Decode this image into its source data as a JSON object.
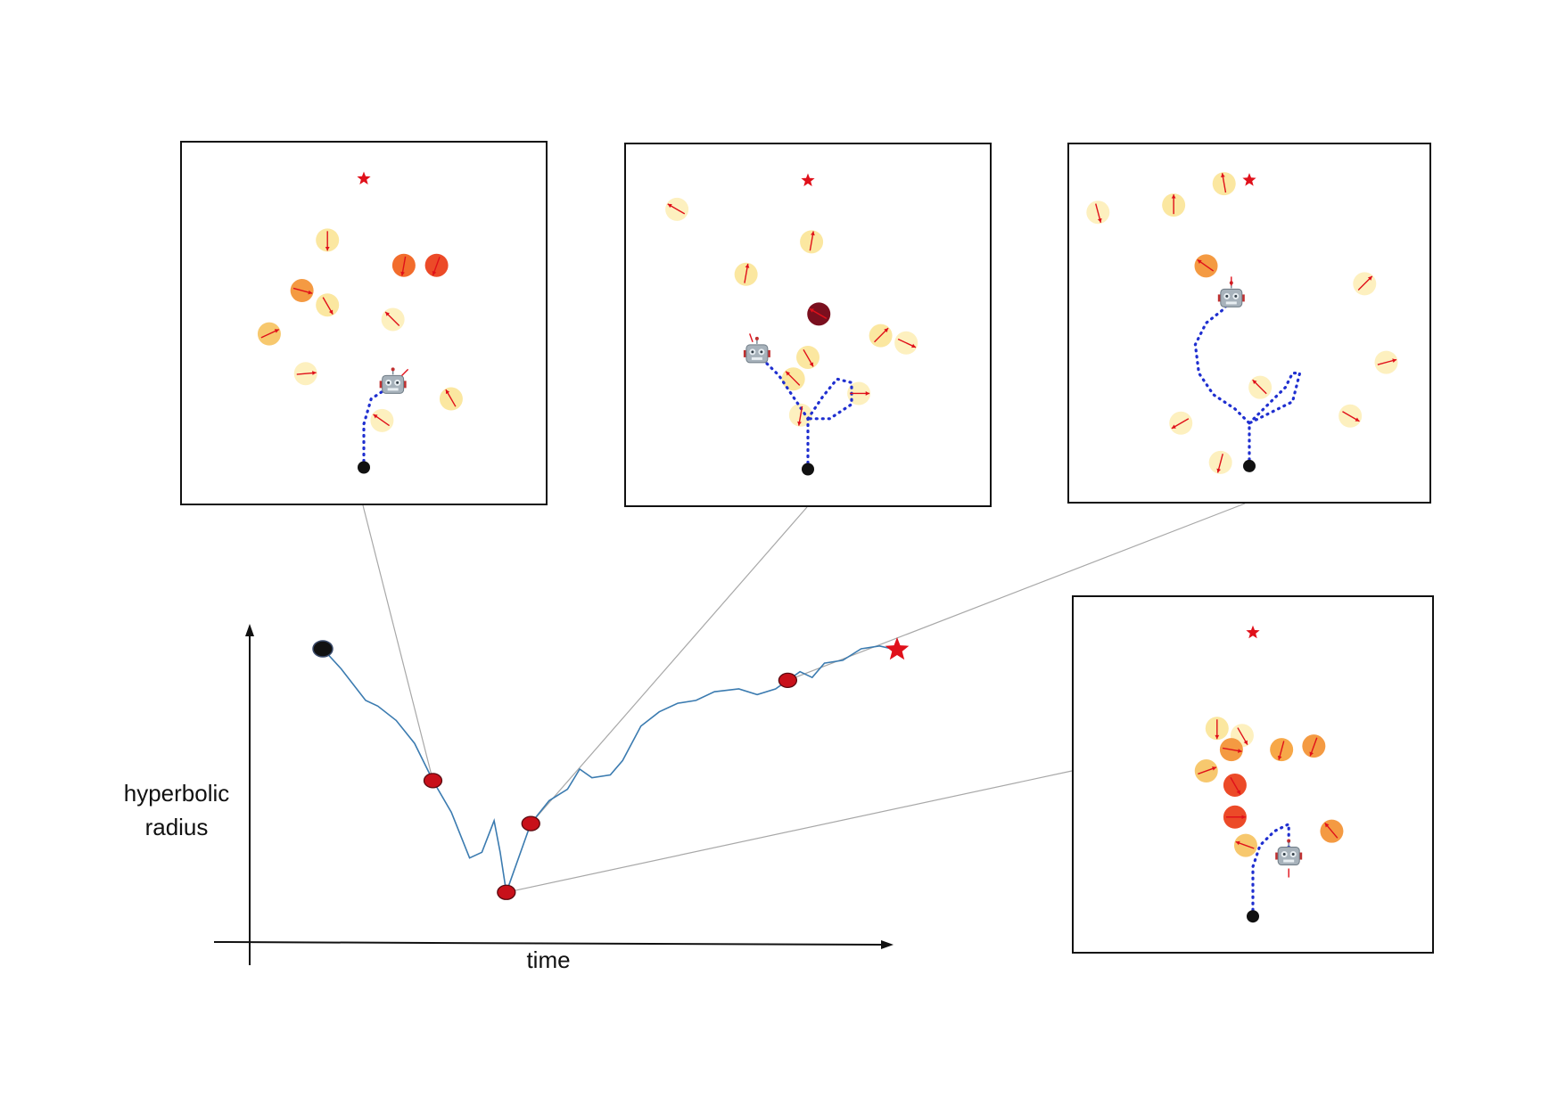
{
  "axes": {
    "ylabel_line1": "hyperbolic",
    "ylabel_line2": "radius",
    "xlabel": "time"
  },
  "colors": {
    "trajectory_line": "#3b7bb0",
    "start_marker": "#111111",
    "snapshot_marker": "#c8101a",
    "goal_star": "#e0101a",
    "robot_path": "#1f2fd0",
    "velocity_arrow": "#e0101a",
    "connector": "#a8a8a8",
    "panel_border": "#111111"
  },
  "curve": {
    "description_points": [
      [
        0.0,
        0.93
      ],
      [
        0.03,
        0.86
      ],
      [
        0.07,
        0.75
      ],
      [
        0.09,
        0.73
      ],
      [
        0.12,
        0.68
      ],
      [
        0.15,
        0.6
      ],
      [
        0.18,
        0.47
      ],
      [
        0.21,
        0.36
      ],
      [
        0.24,
        0.2
      ],
      [
        0.26,
        0.22
      ],
      [
        0.28,
        0.33
      ],
      [
        0.29,
        0.22
      ],
      [
        0.3,
        0.08
      ],
      [
        0.34,
        0.32
      ],
      [
        0.37,
        0.4
      ],
      [
        0.4,
        0.44
      ],
      [
        0.42,
        0.51
      ],
      [
        0.44,
        0.48
      ],
      [
        0.47,
        0.49
      ],
      [
        0.49,
        0.54
      ],
      [
        0.52,
        0.66
      ],
      [
        0.55,
        0.71
      ],
      [
        0.58,
        0.74
      ],
      [
        0.61,
        0.75
      ],
      [
        0.64,
        0.78
      ],
      [
        0.68,
        0.79
      ],
      [
        0.71,
        0.77
      ],
      [
        0.74,
        0.79
      ],
      [
        0.76,
        0.82
      ],
      [
        0.78,
        0.85
      ],
      [
        0.8,
        0.83
      ],
      [
        0.82,
        0.88
      ],
      [
        0.85,
        0.89
      ],
      [
        0.88,
        0.93
      ],
      [
        0.91,
        0.94
      ],
      [
        0.93,
        0.93
      ]
    ],
    "snapshots": [
      {
        "t": 0.18,
        "r": 0.47,
        "panel": "panel1"
      },
      {
        "t": 0.3,
        "r": 0.08,
        "panel": "panel4"
      },
      {
        "t": 0.34,
        "r": 0.32,
        "panel": "panel2"
      },
      {
        "t": 0.76,
        "r": 0.82,
        "panel": "panel3"
      }
    ]
  },
  "panels": {
    "panel1": {
      "goal": [
        0.5,
        0.1
      ],
      "start": [
        0.5,
        0.9
      ],
      "robot": [
        0.58,
        0.67
      ],
      "path": [
        [
          0.5,
          0.9
        ],
        [
          0.5,
          0.78
        ],
        [
          0.52,
          0.71
        ],
        [
          0.58,
          0.67
        ]
      ],
      "humans": [
        {
          "p": [
            0.4,
            0.27
          ],
          "c": "#fbe7a0",
          "a": 90
        },
        {
          "p": [
            0.61,
            0.34
          ],
          "c": "#f26c2c",
          "a": 100
        },
        {
          "p": [
            0.7,
            0.34
          ],
          "c": "#ec4a28",
          "a": 110
        },
        {
          "p": [
            0.33,
            0.41
          ],
          "c": "#f49a42",
          "a": 15
        },
        {
          "p": [
            0.4,
            0.45
          ],
          "c": "#fbe7a0",
          "a": 60
        },
        {
          "p": [
            0.58,
            0.49
          ],
          "c": "#fdf0bf",
          "a": 225
        },
        {
          "p": [
            0.24,
            0.53
          ],
          "c": "#f7c86e",
          "a": -25
        },
        {
          "p": [
            0.34,
            0.64
          ],
          "c": "#fdf0bf",
          "a": -5
        },
        {
          "p": [
            0.55,
            0.77
          ],
          "c": "#fdf0bf",
          "a": 215
        },
        {
          "p": [
            0.74,
            0.71
          ],
          "c": "#fbe7a0",
          "a": 240
        }
      ],
      "robot_arrow": -45
    },
    "panel2": {
      "goal": [
        0.5,
        0.1
      ],
      "start": [
        0.5,
        0.9
      ],
      "robot": [
        0.36,
        0.58
      ],
      "path": [
        [
          0.5,
          0.9
        ],
        [
          0.5,
          0.76
        ],
        [
          0.46,
          0.7
        ],
        [
          0.42,
          0.64
        ],
        [
          0.38,
          0.6
        ],
        [
          0.36,
          0.58
        ]
      ],
      "path2": [
        [
          0.5,
          0.76
        ],
        [
          0.54,
          0.7
        ],
        [
          0.58,
          0.65
        ],
        [
          0.62,
          0.66
        ],
        [
          0.62,
          0.72
        ],
        [
          0.56,
          0.76
        ],
        [
          0.5,
          0.76
        ]
      ],
      "humans": [
        {
          "p": [
            0.14,
            0.18
          ],
          "c": "#fdf0bf",
          "a": 210
        },
        {
          "p": [
            0.51,
            0.27
          ],
          "c": "#fbe7a0",
          "a": -80
        },
        {
          "p": [
            0.33,
            0.36
          ],
          "c": "#fbe7a0",
          "a": -80
        },
        {
          "p": [
            0.53,
            0.47
          ],
          "c": "#7a0f1e",
          "a": 210
        },
        {
          "p": [
            0.7,
            0.53
          ],
          "c": "#fbe7a0",
          "a": -45
        },
        {
          "p": [
            0.77,
            0.55
          ],
          "c": "#fdf0bf",
          "a": 25
        },
        {
          "p": [
            0.5,
            0.59
          ],
          "c": "#fbe7a0",
          "a": 60
        },
        {
          "p": [
            0.46,
            0.65
          ],
          "c": "#fbe7a0",
          "a": 225
        },
        {
          "p": [
            0.64,
            0.69
          ],
          "c": "#fdf0bf",
          "a": 0
        },
        {
          "p": [
            0.48,
            0.75
          ],
          "c": "#fdf0bf",
          "a": 100
        }
      ],
      "robot_arrow": -110
    },
    "panel3": {
      "goal": [
        0.5,
        0.1
      ],
      "start": [
        0.5,
        0.9
      ],
      "robot": [
        0.45,
        0.43
      ],
      "path": [
        [
          0.5,
          0.9
        ],
        [
          0.5,
          0.78
        ],
        [
          0.46,
          0.74
        ],
        [
          0.4,
          0.7
        ],
        [
          0.36,
          0.64
        ],
        [
          0.35,
          0.56
        ],
        [
          0.38,
          0.5
        ],
        [
          0.43,
          0.46
        ],
        [
          0.45,
          0.43
        ]
      ],
      "path2": [
        [
          0.5,
          0.78
        ],
        [
          0.56,
          0.72
        ],
        [
          0.6,
          0.68
        ],
        [
          0.62,
          0.64
        ],
        [
          0.64,
          0.64
        ],
        [
          0.62,
          0.72
        ],
        [
          0.56,
          0.75
        ],
        [
          0.5,
          0.78
        ]
      ],
      "humans": [
        {
          "p": [
            0.43,
            0.11
          ],
          "c": "#fbe7a0",
          "a": -100
        },
        {
          "p": [
            0.29,
            0.17
          ],
          "c": "#fbe7a0",
          "a": -90
        },
        {
          "p": [
            0.08,
            0.19
          ],
          "c": "#fdf0bf",
          "a": 75
        },
        {
          "p": [
            0.38,
            0.34
          ],
          "c": "#f49a42",
          "a": 215
        },
        {
          "p": [
            0.82,
            0.39
          ],
          "c": "#fdf0bf",
          "a": -45
        },
        {
          "p": [
            0.88,
            0.61
          ],
          "c": "#fdf0bf",
          "a": -15
        },
        {
          "p": [
            0.53,
            0.68
          ],
          "c": "#fdf0bf",
          "a": 225
        },
        {
          "p": [
            0.31,
            0.78
          ],
          "c": "#fdf0bf",
          "a": 150
        },
        {
          "p": [
            0.78,
            0.76
          ],
          "c": "#fdf0bf",
          "a": 30
        },
        {
          "p": [
            0.42,
            0.89
          ],
          "c": "#fdf0bf",
          "a": 105
        }
      ],
      "robot_arrow": -90
    },
    "panel4": {
      "goal": [
        0.5,
        0.1
      ],
      "start": [
        0.5,
        0.9
      ],
      "robot": [
        0.6,
        0.73
      ],
      "path": [
        [
          0.5,
          0.9
        ],
        [
          0.5,
          0.76
        ],
        [
          0.52,
          0.7
        ],
        [
          0.56,
          0.66
        ],
        [
          0.6,
          0.64
        ],
        [
          0.6,
          0.73
        ]
      ],
      "humans": [
        {
          "p": [
            0.4,
            0.37
          ],
          "c": "#fbe7a0",
          "a": 90
        },
        {
          "p": [
            0.47,
            0.39
          ],
          "c": "#fdf0bf",
          "a": 60
        },
        {
          "p": [
            0.44,
            0.43
          ],
          "c": "#f49a42",
          "a": 10
        },
        {
          "p": [
            0.58,
            0.43
          ],
          "c": "#f7a848",
          "a": 105
        },
        {
          "p": [
            0.67,
            0.42
          ],
          "c": "#f49a42",
          "a": 110
        },
        {
          "p": [
            0.37,
            0.49
          ],
          "c": "#f7c86e",
          "a": -20
        },
        {
          "p": [
            0.45,
            0.53
          ],
          "c": "#ec4a28",
          "a": 60
        },
        {
          "p": [
            0.45,
            0.62
          ],
          "c": "#ec4a28",
          "a": 0
        },
        {
          "p": [
            0.48,
            0.7
          ],
          "c": "#f7c86e",
          "a": 200
        },
        {
          "p": [
            0.72,
            0.66
          ],
          "c": "#f49a42",
          "a": 230
        }
      ],
      "robot_arrow": 90
    }
  }
}
